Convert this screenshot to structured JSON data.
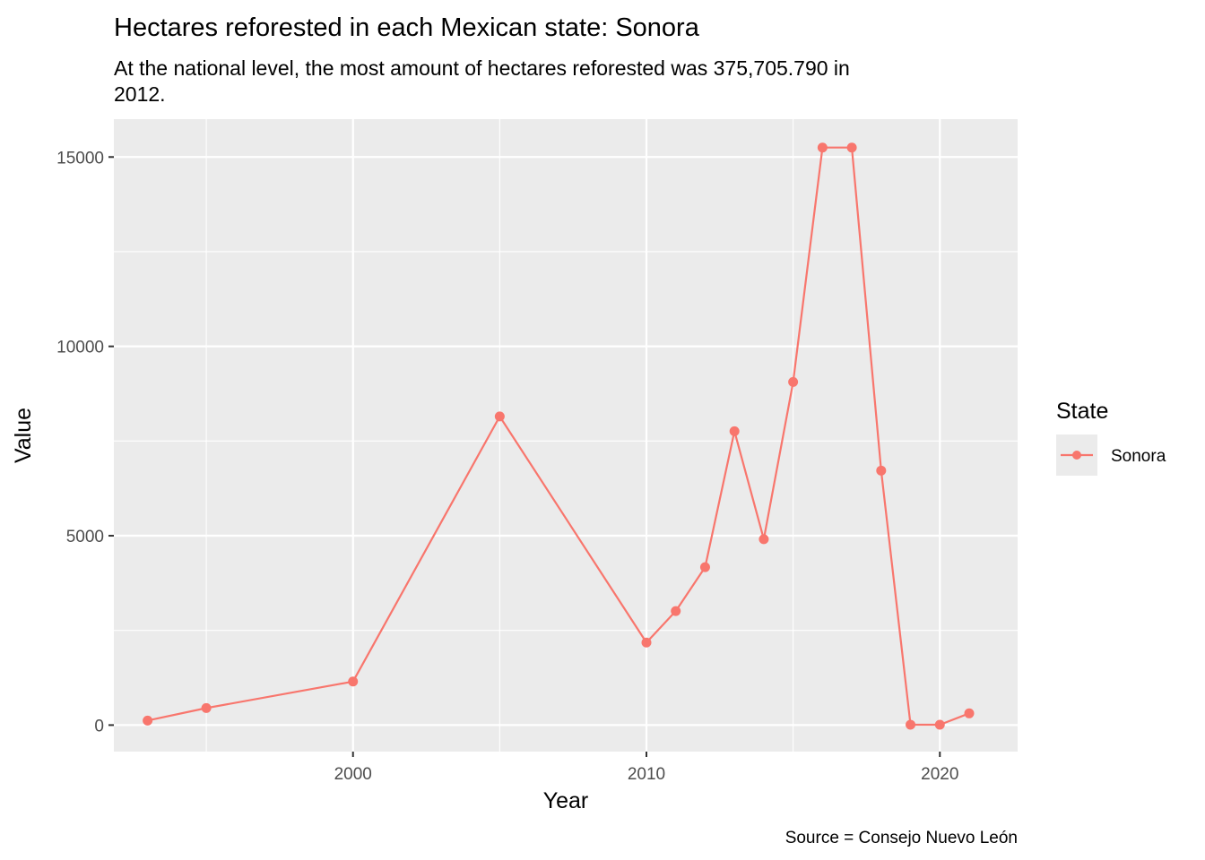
{
  "chart_data": {
    "type": "line",
    "title": "Hectares reforested in each Mexican state: Sonora",
    "subtitle_lines": [
      "At the national level, the most amount of hectares reforested was 375,705.790 in",
      "2012."
    ],
    "xlabel": "Year",
    "ylabel": "Value",
    "caption": "Source = Consejo Nuevo León",
    "xlim": [
      1991.85,
      2022.65
    ],
    "ylim": [
      -700,
      16000
    ],
    "x_ticks": [
      2000,
      2010,
      2020
    ],
    "y_ticks": [
      0,
      5000,
      10000,
      15000
    ],
    "grid": true,
    "legend": {
      "title": "State",
      "position": "right"
    },
    "series": [
      {
        "name": "Sonora",
        "color": "#F8766D",
        "points": [
          {
            "x": 1993,
            "y": 120
          },
          {
            "x": 1995,
            "y": 450
          },
          {
            "x": 2000,
            "y": 1150
          },
          {
            "x": 2005,
            "y": 8150
          },
          {
            "x": 2010,
            "y": 2180
          },
          {
            "x": 2011,
            "y": 3010
          },
          {
            "x": 2012,
            "y": 4170
          },
          {
            "x": 2013,
            "y": 7760
          },
          {
            "x": 2014,
            "y": 4910
          },
          {
            "x": 2015,
            "y": 9060
          },
          {
            "x": 2016,
            "y": 15250
          },
          {
            "x": 2017,
            "y": 15250
          },
          {
            "x": 2018,
            "y": 6720
          },
          {
            "x": 2019,
            "y": 10
          },
          {
            "x": 2020,
            "y": 10
          },
          {
            "x": 2021,
            "y": 310
          }
        ]
      }
    ]
  }
}
